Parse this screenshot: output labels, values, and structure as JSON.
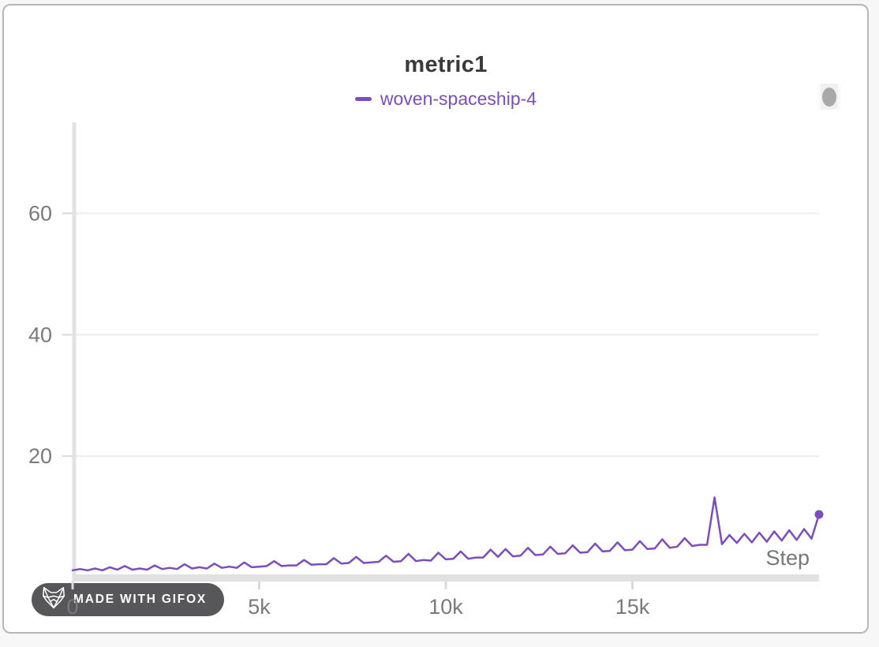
{
  "window": {
    "background": "#f7f7f8",
    "card_background": "#ffffff",
    "card_border": "#b6b6b6"
  },
  "chart_data": {
    "type": "line",
    "title": "metric1",
    "xlabel": "Step",
    "ylabel": "",
    "xlim": [
      0,
      20000
    ],
    "ylim": [
      0,
      75
    ],
    "grid": true,
    "legend_position": "top",
    "x_ticks": [
      {
        "value": 0,
        "label": "0"
      },
      {
        "value": 5000,
        "label": "5k"
      },
      {
        "value": 10000,
        "label": "10k"
      },
      {
        "value": 15000,
        "label": "15k"
      }
    ],
    "y_ticks": [
      {
        "value": 20,
        "label": "20"
      },
      {
        "value": 40,
        "label": "40"
      },
      {
        "value": 60,
        "label": "60"
      }
    ],
    "series": [
      {
        "name": "woven-spaceship-4",
        "color": "#7b4dbd",
        "end_marker": true,
        "points": [
          [
            0,
            1.2
          ],
          [
            200,
            1.4
          ],
          [
            400,
            1.2
          ],
          [
            600,
            1.5
          ],
          [
            800,
            1.2
          ],
          [
            1000,
            1.7
          ],
          [
            1200,
            1.3
          ],
          [
            1400,
            1.9
          ],
          [
            1600,
            1.3
          ],
          [
            1800,
            1.5
          ],
          [
            2000,
            1.3
          ],
          [
            2200,
            2.0
          ],
          [
            2400,
            1.4
          ],
          [
            2600,
            1.6
          ],
          [
            2800,
            1.4
          ],
          [
            3000,
            2.2
          ],
          [
            3200,
            1.5
          ],
          [
            3400,
            1.7
          ],
          [
            3600,
            1.5
          ],
          [
            3800,
            2.3
          ],
          [
            4000,
            1.6
          ],
          [
            4200,
            1.8
          ],
          [
            4400,
            1.6
          ],
          [
            4600,
            2.5
          ],
          [
            4800,
            1.7
          ],
          [
            5000,
            1.8
          ],
          [
            5200,
            1.9
          ],
          [
            5400,
            2.7
          ],
          [
            5600,
            1.9
          ],
          [
            5800,
            2.0
          ],
          [
            6000,
            2.0
          ],
          [
            6200,
            2.9
          ],
          [
            6400,
            2.1
          ],
          [
            6600,
            2.2
          ],
          [
            6800,
            2.2
          ],
          [
            7000,
            3.2
          ],
          [
            7200,
            2.3
          ],
          [
            7400,
            2.4
          ],
          [
            7600,
            3.4
          ],
          [
            7800,
            2.4
          ],
          [
            8000,
            2.5
          ],
          [
            8200,
            2.6
          ],
          [
            8400,
            3.6
          ],
          [
            8600,
            2.6
          ],
          [
            8800,
            2.7
          ],
          [
            9000,
            3.9
          ],
          [
            9200,
            2.7
          ],
          [
            9400,
            2.9
          ],
          [
            9600,
            2.8
          ],
          [
            9800,
            4.1
          ],
          [
            10000,
            3.0
          ],
          [
            10200,
            3.1
          ],
          [
            10400,
            4.3
          ],
          [
            10600,
            3.1
          ],
          [
            10800,
            3.3
          ],
          [
            11000,
            3.3
          ],
          [
            11200,
            4.6
          ],
          [
            11400,
            3.4
          ],
          [
            11600,
            4.7
          ],
          [
            11800,
            3.5
          ],
          [
            12000,
            3.6
          ],
          [
            12200,
            4.9
          ],
          [
            12400,
            3.7
          ],
          [
            12600,
            3.8
          ],
          [
            12800,
            5.1
          ],
          [
            13000,
            3.9
          ],
          [
            13200,
            4.0
          ],
          [
            13400,
            5.3
          ],
          [
            13600,
            4.1
          ],
          [
            13800,
            4.2
          ],
          [
            14000,
            5.6
          ],
          [
            14200,
            4.3
          ],
          [
            14400,
            4.4
          ],
          [
            14600,
            5.8
          ],
          [
            14800,
            4.5
          ],
          [
            15000,
            4.6
          ],
          [
            15200,
            6.0
          ],
          [
            15400,
            4.7
          ],
          [
            15600,
            4.8
          ],
          [
            15800,
            6.3
          ],
          [
            16000,
            4.9
          ],
          [
            16200,
            5.1
          ],
          [
            16400,
            6.5
          ],
          [
            16600,
            5.2
          ],
          [
            16800,
            5.4
          ],
          [
            17000,
            5.4
          ],
          [
            17200,
            13.2
          ],
          [
            17400,
            5.5
          ],
          [
            17600,
            7.0
          ],
          [
            17800,
            5.7
          ],
          [
            18000,
            7.2
          ],
          [
            18200,
            5.8
          ],
          [
            18400,
            7.4
          ],
          [
            18600,
            5.9
          ],
          [
            18800,
            7.6
          ],
          [
            19000,
            6.1
          ],
          [
            19200,
            7.8
          ],
          [
            19400,
            6.2
          ],
          [
            19600,
            8.0
          ],
          [
            19800,
            6.4
          ],
          [
            20000,
            10.4
          ]
        ]
      }
    ]
  },
  "legend": {
    "items": [
      {
        "label": "woven-spaceship-4",
        "color": "#7b4dbd"
      }
    ]
  },
  "watermark": {
    "label": "MADE WITH GIFOX",
    "background": "#57575a",
    "text_color": "#ffffff"
  },
  "cursor_indicator": {
    "color": "#a9a9a9"
  },
  "axis_style": {
    "label_color": "#7a7a7a",
    "grid_color": "#ededed",
    "axis_color": "#e2e2e2",
    "tick_color": "#d9d9d9",
    "baseline_color": "#e1e1e1"
  }
}
